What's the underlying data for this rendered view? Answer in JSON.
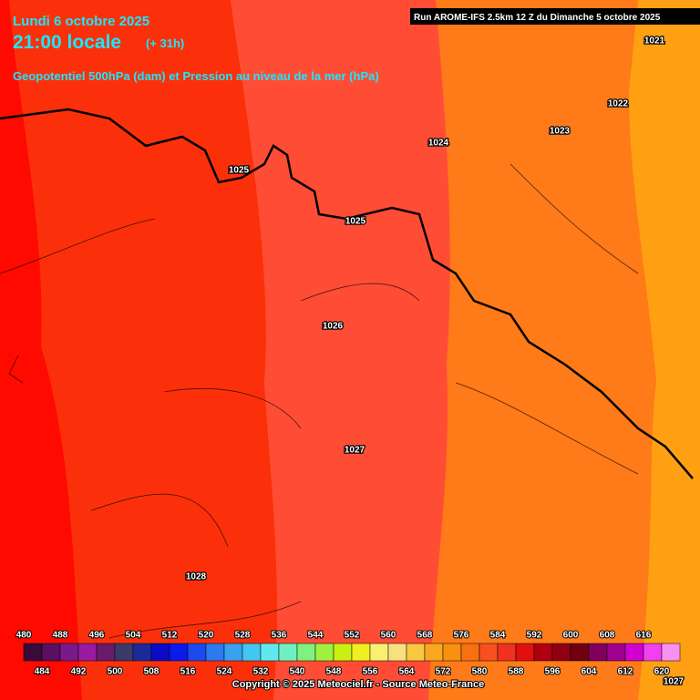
{
  "header": {
    "date": "Lundi 6 octobre 2025",
    "time": "21:00 locale",
    "lead": "(+ 31h)",
    "description": "Geopotentiel 500hPa (dam) et Pression au niveau de la mer (hPa)"
  },
  "run": "Run AROME-IFS 2.5km 12 Z du Dimanche 5 octobre 2025",
  "isobar_labels": [
    "1021",
    "1022",
    "1023",
    "1024",
    "1025",
    "1025",
    "1026",
    "1027",
    "1028",
    "1027"
  ],
  "colorbar": {
    "values": [
      480,
      484,
      488,
      492,
      496,
      500,
      504,
      508,
      512,
      516,
      520,
      524,
      528,
      532,
      536,
      540,
      544,
      548,
      552,
      556,
      560,
      564,
      568,
      572,
      576,
      580,
      584,
      588,
      592,
      596,
      600,
      604,
      608,
      612,
      616,
      620
    ],
    "colors": [
      "#3a0a3a",
      "#5a1060",
      "#7a1a8a",
      "#9a1aa0",
      "#6a1a6a",
      "#3a3a6a",
      "#1a2a9a",
      "#0a0ac8",
      "#0a1ae8",
      "#1a4af0",
      "#2a7af0",
      "#3aa0f0",
      "#40c8f0",
      "#60e8f0",
      "#70f0c0",
      "#80f080",
      "#a0f040",
      "#c8f010",
      "#f0f020",
      "#f8f070",
      "#f8e080",
      "#f8c840",
      "#f8a820",
      "#f89010",
      "#f87010",
      "#f85020",
      "#f03020",
      "#e01010",
      "#b00010",
      "#900010",
      "#700010",
      "#800060",
      "#a00090",
      "#d000d0",
      "#f040f0",
      "#f890f0"
    ]
  },
  "copyright": "Copyright © 2025 Meteociel.fr - Source Meteo-France"
}
